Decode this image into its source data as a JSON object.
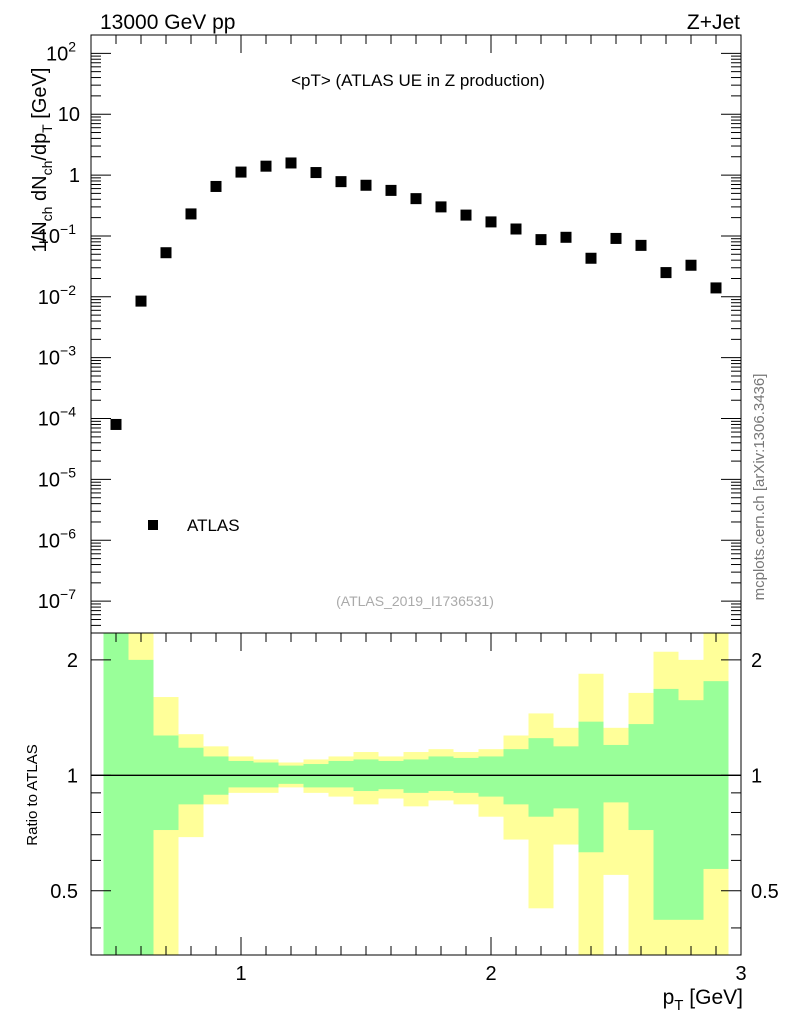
{
  "header": {
    "left": "13000 GeV pp",
    "right": "Z+Jet"
  },
  "side_label": "mcplots.cern.ch [arXiv:1306.3436]",
  "chart_data": [
    {
      "type": "scatter",
      "title": "<pT> (ATLAS UE in Z production)",
      "ylabel": "1/N_ch dN_ch/dp_T [GeV]",
      "ylabel_parts": {
        "pre": "1/N",
        "sub1": "ch",
        "mid": " dN",
        "sub2": "ch",
        "post": "/dp",
        "sub3": "T",
        "unit": " [GeV]"
      },
      "yscale": "log",
      "ylim": [
        3e-08,
        200
      ],
      "xlim": [
        0.4,
        3.0
      ],
      "watermark": "(ATLAS_2019_I1736531)",
      "legend": {
        "label": "ATLAS",
        "position": "bottom-left"
      },
      "y_tick_labels": [
        {
          "value": 100,
          "base": "10",
          "exp": "2"
        },
        {
          "value": 10,
          "base": "10",
          "exp": ""
        },
        {
          "value": 1,
          "base": "1",
          "exp": ""
        },
        {
          "value": 0.1,
          "base": "10",
          "exp": "−1"
        },
        {
          "value": 0.01,
          "base": "10",
          "exp": "−2"
        },
        {
          "value": 0.001,
          "base": "10",
          "exp": "−3"
        },
        {
          "value": 0.0001,
          "base": "10",
          "exp": "−4"
        },
        {
          "value": 1e-05,
          "base": "10",
          "exp": "−5"
        },
        {
          "value": 1e-06,
          "base": "10",
          "exp": "−6"
        },
        {
          "value": 1e-07,
          "base": "10",
          "exp": "−7"
        }
      ],
      "series": [
        {
          "name": "ATLAS",
          "x": [
            0.5,
            0.6,
            0.7,
            0.8,
            0.9,
            1.0,
            1.1,
            1.2,
            1.3,
            1.4,
            1.5,
            1.6,
            1.7,
            1.8,
            1.9,
            2.0,
            2.1,
            2.2,
            2.3,
            2.4,
            2.5,
            2.6,
            2.7,
            2.8,
            2.9
          ],
          "y": [
            8e-05,
            0.0085,
            0.053,
            0.23,
            0.65,
            1.12,
            1.4,
            1.58,
            1.1,
            0.78,
            0.68,
            0.56,
            0.41,
            0.3,
            0.22,
            0.17,
            0.13,
            0.087,
            0.095,
            0.043,
            0.091,
            0.07,
            0.025,
            0.033,
            0.014
          ]
        }
      ]
    },
    {
      "type": "area",
      "ylabel": "Ratio to ATLAS",
      "xlabel": "p_T [GeV]",
      "xlabel_parts": {
        "pre": "p",
        "sub": "T",
        "unit": " [GeV]"
      },
      "xlim": [
        0.4,
        3.0
      ],
      "ylim": [
        0.34,
        2.35
      ],
      "x_ticks": [
        "1",
        "2",
        "3"
      ],
      "y_ticks": [
        "0.5",
        "1",
        "2"
      ],
      "reference_line": 1,
      "bin_edges": [
        0.45,
        0.55,
        0.65,
        0.75,
        0.85,
        0.95,
        1.05,
        1.15,
        1.25,
        1.35,
        1.45,
        1.55,
        1.65,
        1.75,
        1.85,
        1.95,
        2.05,
        2.15,
        2.25,
        2.35,
        2.45,
        2.55,
        2.65,
        2.75,
        2.85,
        2.95
      ],
      "bands": [
        {
          "name": "total uncertainty",
          "color": "#ffff99",
          "low": [
            0.3,
            0.3,
            0.3,
            0.69,
            0.84,
            0.9,
            0.9,
            0.93,
            0.9,
            0.88,
            0.84,
            0.87,
            0.83,
            0.86,
            0.84,
            0.78,
            0.68,
            0.45,
            0.66,
            0.3,
            0.55,
            0.3,
            0.3,
            0.3,
            0.3
          ],
          "high": [
            2.35,
            2.35,
            1.6,
            1.28,
            1.19,
            1.12,
            1.1,
            1.08,
            1.1,
            1.12,
            1.15,
            1.12,
            1.15,
            1.17,
            1.15,
            1.17,
            1.27,
            1.45,
            1.33,
            1.84,
            1.33,
            1.64,
            2.1,
            2.0,
            2.35
          ]
        },
        {
          "name": "statistical uncertainty",
          "color": "#99ff99",
          "low": [
            0.3,
            0.3,
            0.72,
            0.84,
            0.89,
            0.93,
            0.93,
            0.95,
            0.93,
            0.93,
            0.91,
            0.92,
            0.9,
            0.91,
            0.9,
            0.88,
            0.84,
            0.78,
            0.82,
            0.63,
            0.85,
            0.72,
            0.42,
            0.42,
            0.57
          ],
          "high": [
            2.35,
            2.0,
            1.27,
            1.18,
            1.12,
            1.09,
            1.08,
            1.06,
            1.07,
            1.09,
            1.1,
            1.09,
            1.1,
            1.12,
            1.11,
            1.12,
            1.17,
            1.25,
            1.19,
            1.38,
            1.2,
            1.36,
            1.68,
            1.57,
            1.76
          ]
        }
      ]
    }
  ]
}
